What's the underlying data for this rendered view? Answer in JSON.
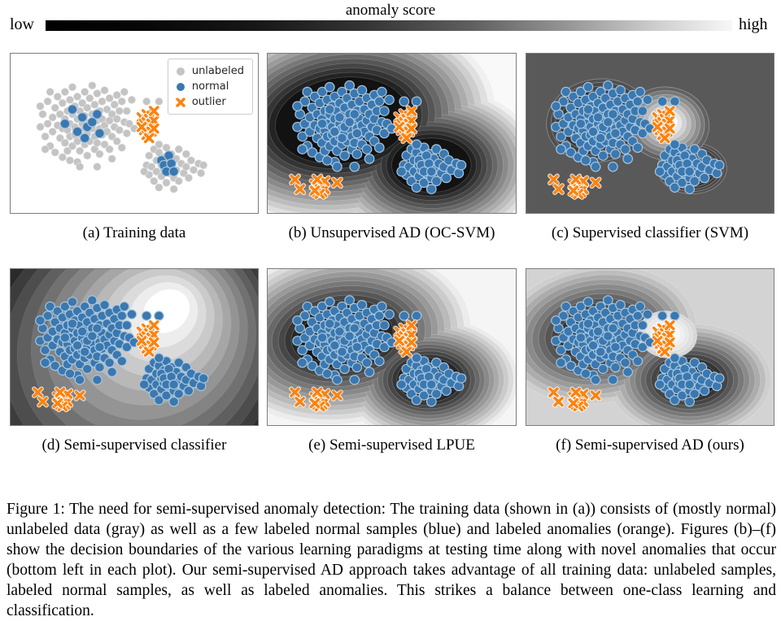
{
  "colorbar": {
    "title": "anomaly score",
    "left_label": "low",
    "right_label": "high",
    "gradient": [
      "#000000",
      "#ffffff"
    ]
  },
  "legend": {
    "items": [
      {
        "label": "unlabeled",
        "marker": "dot",
        "color": "#c4c4c4"
      },
      {
        "label": "normal",
        "marker": "dot",
        "color": "#3b78b0"
      },
      {
        "label": "outlier",
        "marker": "x",
        "color": "#ff7f0e"
      }
    ]
  },
  "caption": {
    "text": "Figure 1: The need for semi-supervised anomaly detection: The training data (shown in (a)) consists of (mostly normal) unlabeled data (gray) as well as a few labeled normal samples (blue) and labeled anomalies (orange). Figures (b)–(f) show the decision boundaries of the various learning paradigms at testing time along with novel anomalies that occur (bottom left in each plot). Our semi-supervised AD approach takes advantage of all training data: unlabeled samples, labeled normal samples, as well as labeled anomalies. This strikes a balance between one-class learning and classification."
  },
  "chart_data": {
    "type": "scatter",
    "x_range": [
      0,
      100
    ],
    "y_range": [
      0,
      100
    ],
    "marker_styles": {
      "unlabeled": {
        "fill": "#c4c4c4",
        "stroke": "#e9e9e9",
        "sw": 0.2,
        "r": 1.55
      },
      "normal": {
        "fill": "#3b78b0",
        "stroke": "#a9c7de",
        "sw": 0.38,
        "r": 1.9
      },
      "outlier": {
        "color": "#fb830f",
        "halo": "#ffffff",
        "size": 1.5,
        "sw": 1.15,
        "halo_sw": 1.85
      }
    },
    "points": {
      "cluster1_unlabeled": [
        [
          12,
          46
        ],
        [
          13,
          38
        ],
        [
          14,
          52
        ],
        [
          15,
          30
        ],
        [
          15,
          44
        ],
        [
          16,
          58
        ],
        [
          16,
          24
        ],
        [
          17,
          40
        ],
        [
          17,
          49
        ],
        [
          18,
          34
        ],
        [
          18,
          62
        ],
        [
          19,
          27
        ],
        [
          19,
          45
        ],
        [
          20,
          53
        ],
        [
          20,
          38
        ],
        [
          21,
          31
        ],
        [
          21,
          47
        ],
        [
          21,
          65
        ],
        [
          22,
          41
        ],
        [
          22,
          24
        ],
        [
          22,
          56
        ],
        [
          23,
          36
        ],
        [
          23,
          48
        ],
        [
          23,
          61
        ],
        [
          24,
          29
        ],
        [
          24,
          44
        ],
        [
          24,
          52
        ],
        [
          25,
          38
        ],
        [
          25,
          58
        ],
        [
          25,
          21
        ],
        [
          26,
          33
        ],
        [
          26,
          46
        ],
        [
          26,
          51
        ],
        [
          27,
          27
        ],
        [
          27,
          41
        ],
        [
          27,
          55
        ],
        [
          27,
          68
        ],
        [
          28,
          36
        ],
        [
          28,
          48
        ],
        [
          28,
          61
        ],
        [
          29,
          31
        ],
        [
          29,
          44
        ],
        [
          29,
          52
        ],
        [
          30,
          24
        ],
        [
          30,
          39
        ],
        [
          30,
          57
        ],
        [
          30,
          47
        ],
        [
          31,
          34
        ],
        [
          31,
          50
        ],
        [
          31,
          64
        ],
        [
          32,
          28
        ],
        [
          32,
          43
        ],
        [
          32,
          55
        ],
        [
          33,
          38
        ],
        [
          33,
          47
        ],
        [
          33,
          20
        ],
        [
          34,
          32
        ],
        [
          34,
          52
        ],
        [
          34,
          60
        ],
        [
          35,
          42
        ],
        [
          35,
          25
        ],
        [
          35,
          56
        ],
        [
          36,
          36
        ],
        [
          36,
          47
        ],
        [
          36,
          63
        ],
        [
          37,
          30
        ],
        [
          37,
          51
        ],
        [
          37,
          41
        ],
        [
          38,
          23
        ],
        [
          38,
          45
        ],
        [
          38,
          57
        ],
        [
          39,
          35
        ],
        [
          39,
          49
        ],
        [
          40,
          28
        ],
        [
          40,
          42
        ],
        [
          40,
          60
        ],
        [
          41,
          38
        ],
        [
          41,
          52
        ],
        [
          42,
          32
        ],
        [
          42,
          46
        ],
        [
          43,
          26
        ],
        [
          43,
          55
        ],
        [
          43,
          41
        ],
        [
          44,
          36
        ],
        [
          44,
          48
        ],
        [
          45,
          30
        ],
        [
          45,
          59
        ],
        [
          46,
          43
        ],
        [
          46,
          24
        ],
        [
          47,
          50
        ],
        [
          47,
          36
        ],
        [
          48,
          44
        ],
        [
          49,
          29
        ],
        [
          50,
          47
        ],
        [
          14,
          60
        ],
        [
          12,
          33
        ],
        [
          35,
          71
        ],
        [
          28,
          71
        ],
        [
          41,
          66
        ],
        [
          24,
          67
        ]
      ],
      "cluster1_labeled": [
        [
          22,
          44
        ],
        [
          25,
          35
        ],
        [
          27,
          49
        ],
        [
          29,
          40
        ],
        [
          31,
          46
        ],
        [
          33,
          43
        ],
        [
          30,
          53
        ],
        [
          35,
          38
        ],
        [
          36,
          50
        ]
      ],
      "cluster2_unlabeled": [
        [
          55,
          70
        ],
        [
          56,
          64
        ],
        [
          56,
          76
        ],
        [
          57,
          71
        ],
        [
          58,
          60
        ],
        [
          58,
          80
        ],
        [
          59,
          67
        ],
        [
          59,
          74
        ],
        [
          60,
          62
        ],
        [
          60,
          84
        ],
        [
          61,
          70
        ],
        [
          61,
          77
        ],
        [
          62,
          65
        ],
        [
          62,
          73
        ],
        [
          63,
          59
        ],
        [
          63,
          81
        ],
        [
          64,
          68
        ],
        [
          64,
          75
        ],
        [
          65,
          63
        ],
        [
          65,
          71
        ],
        [
          66,
          78
        ],
        [
          66,
          85
        ],
        [
          67,
          66
        ],
        [
          67,
          73
        ],
        [
          68,
          60
        ],
        [
          68,
          80
        ],
        [
          69,
          69
        ],
        [
          70,
          75
        ],
        [
          71,
          63
        ],
        [
          71,
          71
        ],
        [
          72,
          78
        ],
        [
          73,
          67
        ],
        [
          74,
          73
        ],
        [
          76,
          69
        ],
        [
          77,
          75
        ],
        [
          78,
          70
        ],
        [
          54,
          74
        ],
        [
          60,
          57
        ],
        [
          55,
          30
        ],
        [
          60,
          30
        ]
      ],
      "cluster2_labeled": [
        [
          61,
          67
        ],
        [
          62,
          70
        ],
        [
          63,
          74
        ],
        [
          64,
          64
        ],
        [
          65,
          69
        ],
        [
          66,
          74
        ]
      ],
      "outliers_labeled": [
        [
          53,
          40
        ],
        [
          54,
          44
        ],
        [
          54,
          48
        ],
        [
          55,
          38
        ],
        [
          55,
          43
        ],
        [
          55,
          51
        ],
        [
          56,
          41
        ],
        [
          56,
          46
        ],
        [
          57,
          39
        ],
        [
          57,
          44
        ],
        [
          57,
          49
        ],
        [
          58,
          42
        ],
        [
          58,
          47
        ],
        [
          53,
          46
        ],
        [
          56,
          53
        ],
        [
          58,
          36
        ]
      ],
      "outliers_novel": [
        [
          19,
          82
        ],
        [
          20,
          84
        ],
        [
          20,
          87
        ],
        [
          21,
          81
        ],
        [
          21,
          85
        ],
        [
          22,
          83
        ],
        [
          22,
          87
        ],
        [
          23,
          85
        ],
        [
          21,
          88
        ],
        [
          23,
          80
        ],
        [
          20,
          79
        ],
        [
          11,
          79
        ],
        [
          13,
          85
        ],
        [
          28,
          81
        ],
        [
          19,
          86
        ]
      ]
    },
    "panels": [
      {
        "id": "a",
        "caption": "(a) Training data",
        "bg": "#ffffff",
        "groups": [],
        "layers": [
          {
            "set": "cluster1_unlabeled",
            "style": "unlabeled"
          },
          {
            "set": "cluster2_unlabeled",
            "style": "unlabeled"
          },
          {
            "set": "cluster1_labeled",
            "style": "normal"
          },
          {
            "set": "cluster2_labeled",
            "style": "normal"
          },
          {
            "set": "outliers_labeled",
            "style": "outlier"
          }
        ]
      },
      {
        "id": "b",
        "caption": "(b) Unsupervised AD (OC-SVM)",
        "bg": "#f9f9f9",
        "groups": [
          {
            "levels": 14,
            "c0": "#f0f0f0",
            "c1": "#121212",
            "stroke": "rgba(255,255,255,0.22)",
            "sw": 0.22,
            "blobs": [
              {
                "cx0": 30,
                "cy0": 42,
                "cx1": 30,
                "cy1": 42,
                "rx0": 62,
                "ry0": 64,
                "rx1": 27,
                "ry1": 27,
                "rot": -8
              },
              {
                "cx0": 66,
                "cy0": 70,
                "cx1": 66,
                "cy1": 70,
                "rx0": 44,
                "ry0": 50,
                "rx1": 16,
                "ry1": 17,
                "rot": 0
              }
            ]
          }
        ],
        "layers": [
          {
            "set": "cluster1_unlabeled",
            "style": "normal"
          },
          {
            "set": "cluster2_unlabeled",
            "style": "normal"
          },
          {
            "set": "cluster1_labeled",
            "style": "normal"
          },
          {
            "set": "cluster2_labeled",
            "style": "normal"
          },
          {
            "set": "outliers_labeled",
            "style": "outlier"
          },
          {
            "set": "outliers_novel",
            "style": "outlier"
          }
        ]
      },
      {
        "id": "c",
        "caption": "(c) Supervised classifier (SVM)",
        "bg": "#595959",
        "groups": [
          {
            "levels": 7,
            "c0": "#505050",
            "c1": "#1e1e1e",
            "stroke": "rgba(255,255,255,0.35)",
            "sw": 0.25,
            "blobs": [
              {
                "cx0": 29,
                "cy0": 42,
                "cx1": 29,
                "cy1": 42,
                "rx0": 21,
                "ry0": 26,
                "rx1": 10,
                "ry1": 12,
                "rot": -10
              },
              {
                "cx0": 67,
                "cy0": 72,
                "cx1": 67,
                "cy1": 72,
                "rx0": 14,
                "ry0": 16,
                "rx1": 6,
                "ry1": 7,
                "rot": 0
              }
            ]
          },
          {
            "levels": 8,
            "c0": "#626262",
            "c1": "#fdfdfd",
            "stroke": "rgba(255,255,255,0.4)",
            "sw": 0.22,
            "blobs": [
              {
                "cx0": 57,
                "cy0": 44,
                "cx1": 57,
                "cy1": 43,
                "rx0": 17,
                "ry0": 23,
                "rx1": 4,
                "ry1": 5.5,
                "rot": 12
              }
            ]
          }
        ],
        "layers": [
          {
            "set": "cluster1_unlabeled",
            "style": "normal"
          },
          {
            "set": "cluster2_unlabeled",
            "style": "normal"
          },
          {
            "set": "cluster1_labeled",
            "style": "normal"
          },
          {
            "set": "cluster2_labeled",
            "style": "normal"
          },
          {
            "set": "outliers_labeled",
            "style": "outlier"
          },
          {
            "set": "outliers_novel",
            "style": "outlier"
          }
        ]
      },
      {
        "id": "d",
        "caption": "(d) Semi-supervised classifier",
        "bg": "#0b0b0b",
        "groups": [
          {
            "levels": 14,
            "c0": "#181818",
            "c1": "#ffffff",
            "stroke": "rgba(255,255,255,0.10)",
            "sw": 0.2,
            "blobs": [
              {
                "cx0": 48,
                "cy0": 58,
                "cx1": 63,
                "cy1": 27,
                "rx0": 70,
                "ry0": 100,
                "rx1": 10,
                "ry1": 13,
                "rot": -40
              }
            ]
          }
        ],
        "layers": [
          {
            "set": "cluster1_unlabeled",
            "style": "normal"
          },
          {
            "set": "cluster2_unlabeled",
            "style": "normal"
          },
          {
            "set": "cluster1_labeled",
            "style": "normal"
          },
          {
            "set": "cluster2_labeled",
            "style": "normal"
          },
          {
            "set": "outliers_labeled",
            "style": "outlier"
          },
          {
            "set": "outliers_novel",
            "style": "outlier"
          }
        ]
      },
      {
        "id": "e",
        "caption": "(e) Semi-supervised LPUE",
        "bg": "#f5f5f5",
        "groups": [
          {
            "levels": 14,
            "c0": "#ececec",
            "c1": "#151515",
            "stroke": "rgba(255,255,255,0.25)",
            "sw": 0.22,
            "blobs": [
              {
                "cx0": 30,
                "cy0": 43,
                "cx1": 30,
                "cy1": 43,
                "rx0": 52,
                "ry0": 56,
                "rx1": 18,
                "ry1": 17,
                "rot": -8
              },
              {
                "cx0": 65,
                "cy0": 71,
                "cx1": 65,
                "cy1": 71,
                "rx0": 36,
                "ry0": 40,
                "rx1": 11,
                "ry1": 12,
                "rot": 0
              }
            ]
          }
        ],
        "layers": [
          {
            "set": "cluster1_unlabeled",
            "style": "normal"
          },
          {
            "set": "cluster2_unlabeled",
            "style": "normal"
          },
          {
            "set": "cluster1_labeled",
            "style": "normal"
          },
          {
            "set": "cluster2_labeled",
            "style": "normal"
          },
          {
            "set": "outliers_labeled",
            "style": "outlier"
          },
          {
            "set": "outliers_novel",
            "style": "outlier"
          }
        ]
      },
      {
        "id": "f",
        "caption": "(f) Semi-supervised AD (ours)",
        "bg": "#d3d3d3",
        "groups": [
          {
            "levels": 12,
            "c0": "#cecece",
            "c1": "#121212",
            "stroke": "rgba(255,255,255,0.28)",
            "sw": 0.22,
            "blobs": [
              {
                "cx0": 29,
                "cy0": 42,
                "cx1": 29,
                "cy1": 42,
                "rx0": 40,
                "ry0": 44,
                "rx1": 11,
                "ry1": 11,
                "rot": -8
              },
              {
                "cx0": 66,
                "cy0": 71,
                "cx1": 66,
                "cy1": 71,
                "rx0": 33,
                "ry0": 36,
                "rx1": 9,
                "ry1": 9,
                "rot": 0
              }
            ]
          },
          {
            "levels": 6,
            "c0": "#d8d8d8",
            "c1": "#ffffff",
            "stroke": "rgba(255,255,255,0.5)",
            "sw": 0.2,
            "blobs": [
              {
                "cx0": 57,
                "cy0": 42,
                "cx1": 57,
                "cy1": 41,
                "rx0": 12,
                "ry0": 15,
                "rx1": 3.5,
                "ry1": 4.5,
                "rot": 10
              }
            ]
          }
        ],
        "layers": [
          {
            "set": "cluster1_unlabeled",
            "style": "normal"
          },
          {
            "set": "cluster2_unlabeled",
            "style": "normal"
          },
          {
            "set": "cluster1_labeled",
            "style": "normal"
          },
          {
            "set": "cluster2_labeled",
            "style": "normal"
          },
          {
            "set": "outliers_labeled",
            "style": "outlier"
          },
          {
            "set": "outliers_novel",
            "style": "outlier"
          }
        ]
      }
    ]
  }
}
